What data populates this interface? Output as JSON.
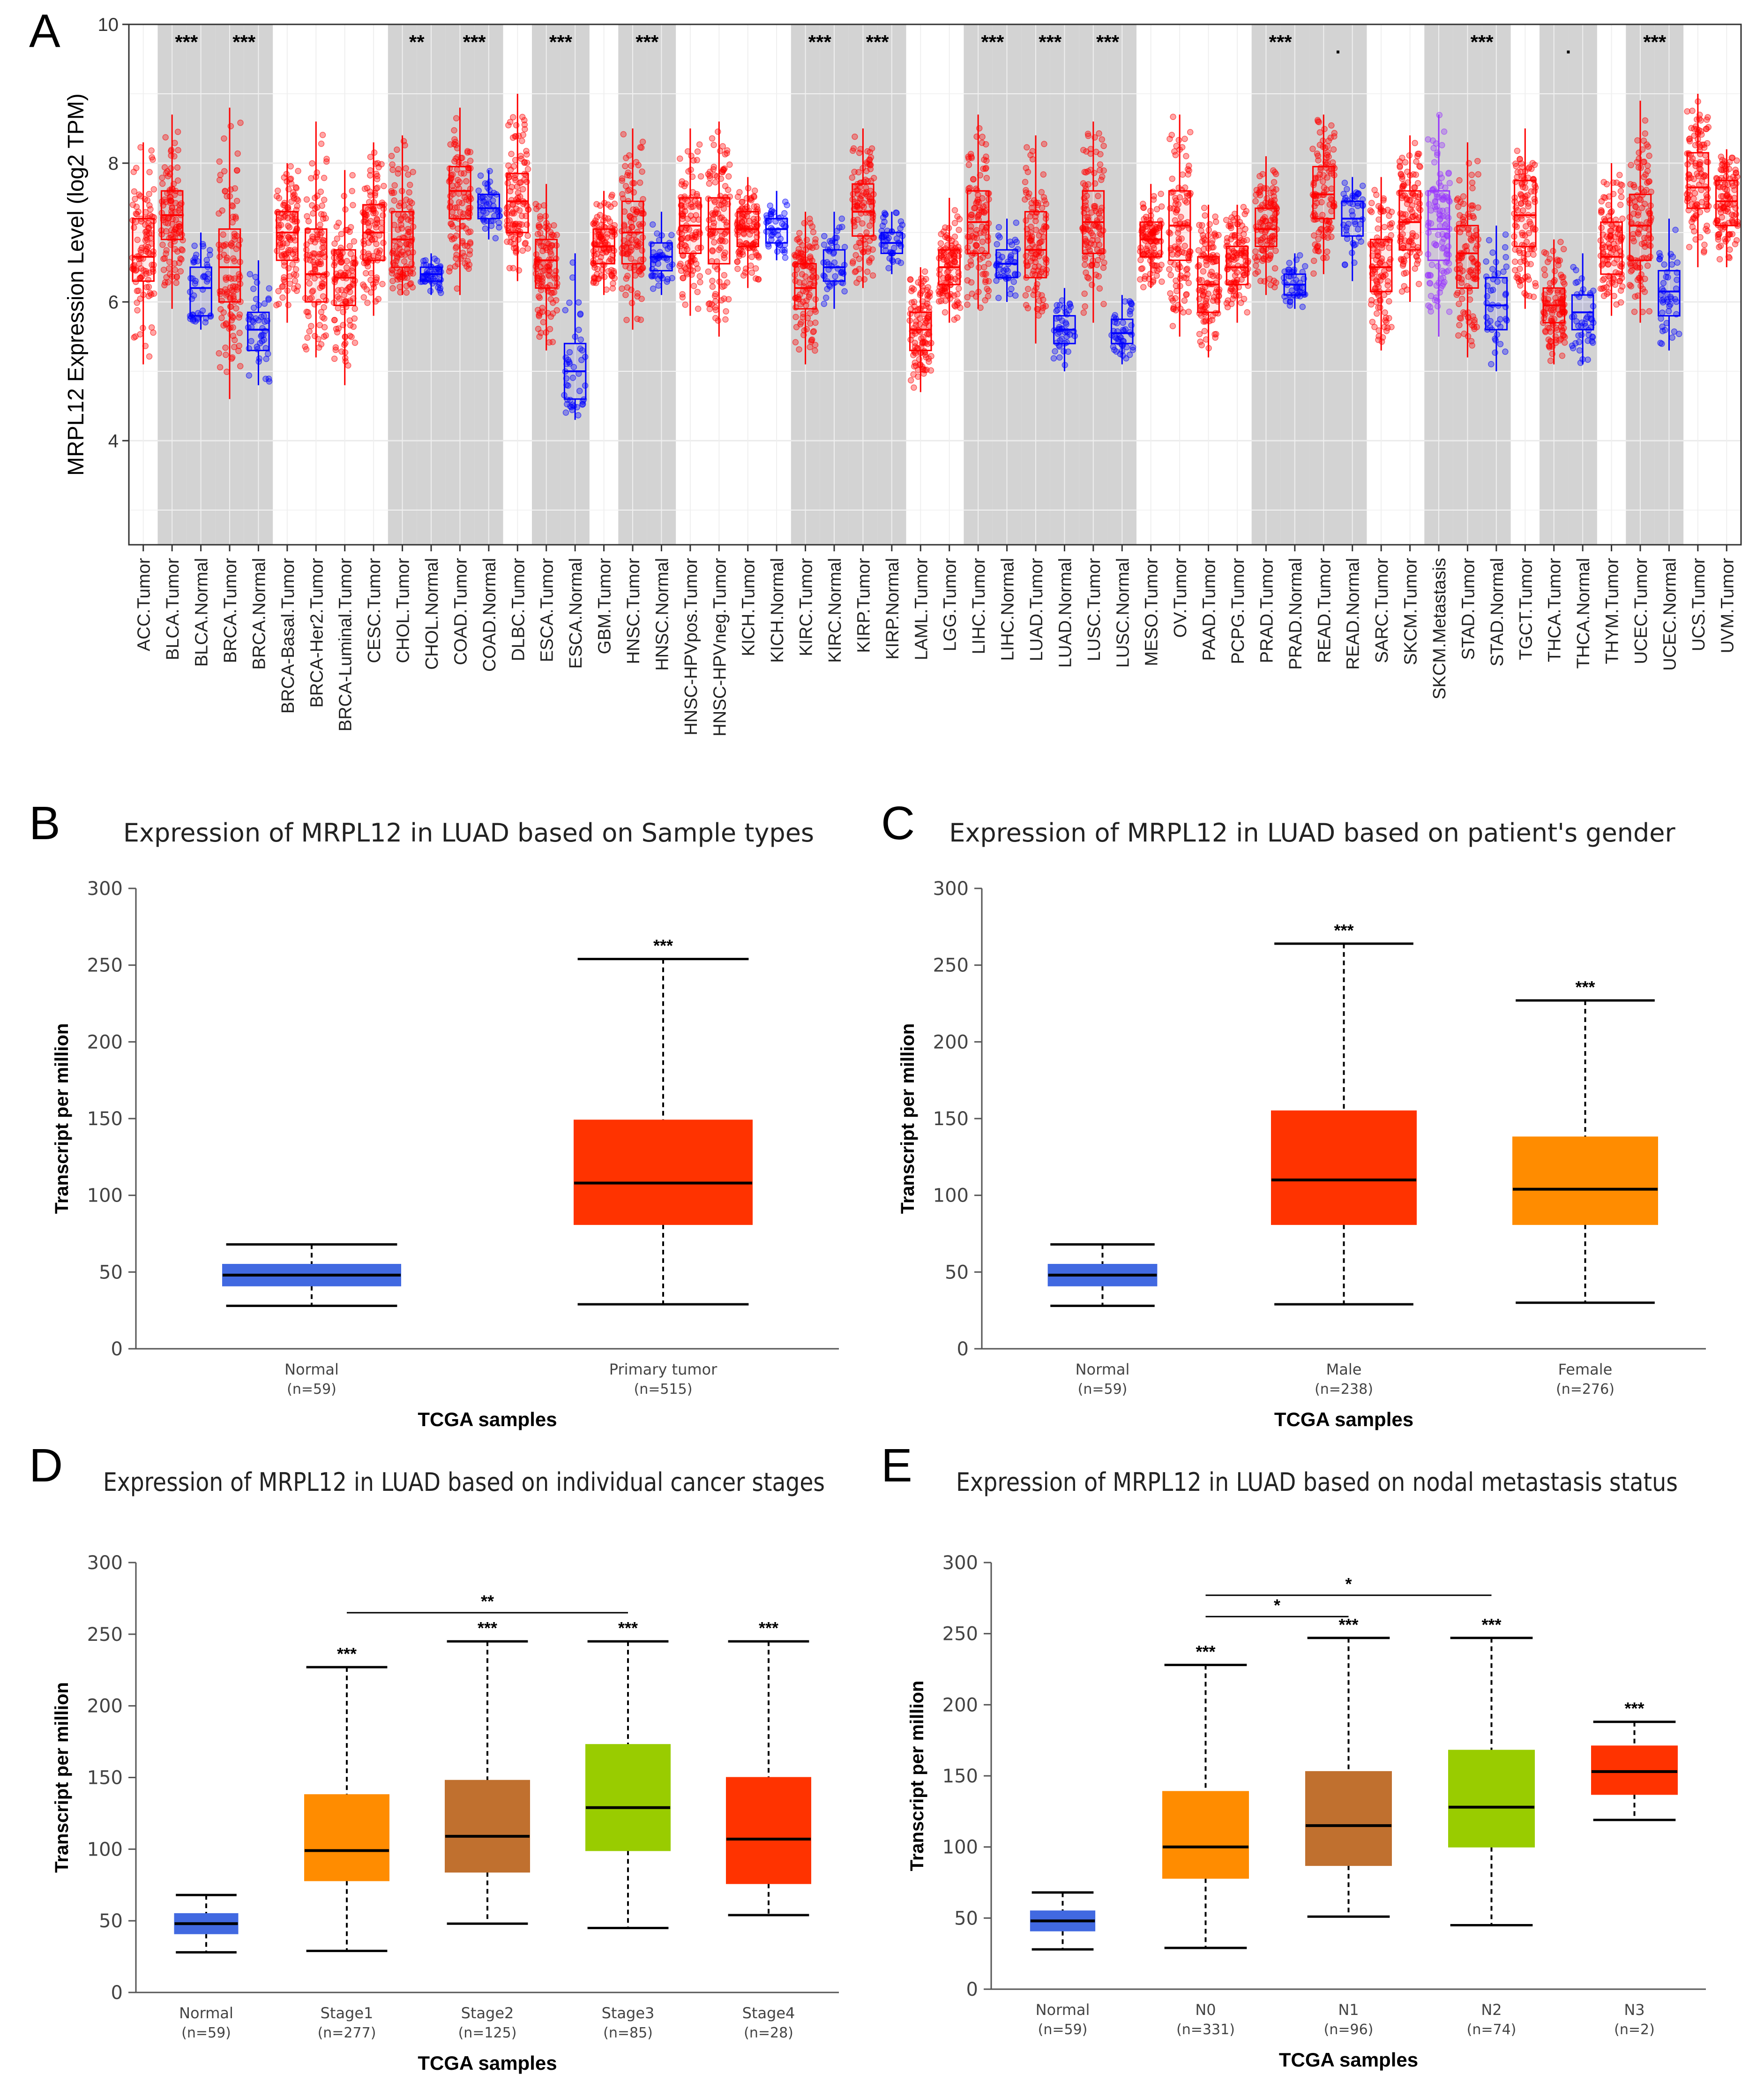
{
  "figure": {
    "panel_labels": [
      "A",
      "B",
      "C",
      "D",
      "E"
    ]
  },
  "colors": {
    "tumor": "#ff0000",
    "normal": "#0000ff",
    "metastasis": "#9933ff",
    "tumor_shade": "#d3d3d3",
    "normal_blue": "#4169e1",
    "red": "#ff3300",
    "orange": "#ff8c00",
    "brown": "#c0702f",
    "green": "#99cc00"
  },
  "chart_data": [
    {
      "panel": "A",
      "type": "box",
      "title": "",
      "ylabel": "MRPL12 Expression Level (log2 TPM)",
      "ylim": [
        2.5,
        10
      ],
      "yticks": [
        4,
        6,
        8,
        10
      ],
      "grid": true,
      "categories": [
        {
          "label": "ACC.Tumor",
          "kind": "tumor",
          "q1": 6.3,
          "med": 6.65,
          "q3": 7.2,
          "lo": 5.1,
          "hi": 8.3,
          "sig": "",
          "shade": false
        },
        {
          "label": "BLCA.Tumor",
          "kind": "tumor",
          "q1": 6.9,
          "med": 7.25,
          "q3": 7.6,
          "lo": 5.9,
          "hi": 8.7,
          "sig": "***",
          "shade": true
        },
        {
          "label": "BLCA.Normal",
          "kind": "normal",
          "q1": 5.8,
          "med": 6.2,
          "q3": 6.5,
          "lo": 5.6,
          "hi": 7.0,
          "sig": "",
          "shade": true
        },
        {
          "label": "BRCA.Tumor",
          "kind": "tumor",
          "q1": 6.0,
          "med": 6.5,
          "q3": 7.05,
          "lo": 4.6,
          "hi": 8.8,
          "sig": "***",
          "shade": true
        },
        {
          "label": "BRCA.Normal",
          "kind": "normal",
          "q1": 5.3,
          "med": 5.6,
          "q3": 5.85,
          "lo": 4.8,
          "hi": 6.6,
          "sig": "",
          "shade": true
        },
        {
          "label": "BRCA-Basal.Tumor",
          "kind": "tumor",
          "q1": 6.6,
          "med": 7.0,
          "q3": 7.3,
          "lo": 5.7,
          "hi": 8.0,
          "sig": "",
          "shade": false
        },
        {
          "label": "BRCA-Her2.Tumor",
          "kind": "tumor",
          "q1": 6.0,
          "med": 6.4,
          "q3": 7.05,
          "lo": 5.2,
          "hi": 8.6,
          "sig": "",
          "shade": false
        },
        {
          "label": "BRCA-Luminal.Tumor",
          "kind": "tumor",
          "q1": 5.95,
          "med": 6.35,
          "q3": 6.75,
          "lo": 4.8,
          "hi": 7.9,
          "sig": "",
          "shade": false
        },
        {
          "label": "CESC.Tumor",
          "kind": "tumor",
          "q1": 6.6,
          "med": 7.0,
          "q3": 7.4,
          "lo": 5.8,
          "hi": 8.3,
          "sig": "",
          "shade": false
        },
        {
          "label": "CHOL.Tumor",
          "kind": "tumor",
          "q1": 6.5,
          "med": 6.9,
          "q3": 7.3,
          "lo": 6.1,
          "hi": 8.4,
          "sig": "**",
          "shade": true
        },
        {
          "label": "CHOL.Normal",
          "kind": "normal",
          "q1": 6.3,
          "med": 6.4,
          "q3": 6.5,
          "lo": 6.1,
          "hi": 6.7,
          "sig": "",
          "shade": true
        },
        {
          "label": "COAD.Tumor",
          "kind": "tumor",
          "q1": 7.2,
          "med": 7.6,
          "q3": 7.95,
          "lo": 6.1,
          "hi": 8.8,
          "sig": "***",
          "shade": true
        },
        {
          "label": "COAD.Normal",
          "kind": "normal",
          "q1": 7.2,
          "med": 7.35,
          "q3": 7.55,
          "lo": 6.9,
          "hi": 7.9,
          "sig": "",
          "shade": true
        },
        {
          "label": "DLBC.Tumor",
          "kind": "tumor",
          "q1": 7.0,
          "med": 7.45,
          "q3": 7.85,
          "lo": 6.3,
          "hi": 9.0,
          "sig": "",
          "shade": false
        },
        {
          "label": "ESCA.Tumor",
          "kind": "tumor",
          "q1": 6.2,
          "med": 6.6,
          "q3": 6.9,
          "lo": 5.3,
          "hi": 7.7,
          "sig": "***",
          "shade": true
        },
        {
          "label": "ESCA.Normal",
          "kind": "normal",
          "q1": 4.6,
          "med": 5.0,
          "q3": 5.4,
          "lo": 4.3,
          "hi": 6.7,
          "sig": "",
          "shade": true
        },
        {
          "label": "GBM.Tumor",
          "kind": "tumor",
          "q1": 6.55,
          "med": 6.8,
          "q3": 7.05,
          "lo": 6.1,
          "hi": 7.6,
          "sig": "",
          "shade": false
        },
        {
          "label": "HNSC.Tumor",
          "kind": "tumor",
          "q1": 6.55,
          "med": 7.0,
          "q3": 7.45,
          "lo": 5.6,
          "hi": 8.5,
          "sig": "***",
          "shade": true
        },
        {
          "label": "HNSC.Normal",
          "kind": "normal",
          "q1": 6.45,
          "med": 6.65,
          "q3": 6.85,
          "lo": 6.1,
          "hi": 7.3,
          "sig": "",
          "shade": true
        },
        {
          "label": "HNSC-HPVpos.Tumor",
          "kind": "tumor",
          "q1": 6.7,
          "med": 7.1,
          "q3": 7.5,
          "lo": 5.8,
          "hi": 8.5,
          "sig": "",
          "shade": false
        },
        {
          "label": "HNSC-HPVneg.Tumor",
          "kind": "tumor",
          "q1": 6.55,
          "med": 7.05,
          "q3": 7.5,
          "lo": 5.5,
          "hi": 8.6,
          "sig": "",
          "shade": false
        },
        {
          "label": "KICH.Tumor",
          "kind": "tumor",
          "q1": 6.8,
          "med": 7.05,
          "q3": 7.3,
          "lo": 6.2,
          "hi": 7.8,
          "sig": "",
          "shade": false
        },
        {
          "label": "KICH.Normal",
          "kind": "normal",
          "q1": 6.85,
          "med": 7.05,
          "q3": 7.2,
          "lo": 6.6,
          "hi": 7.6,
          "sig": "",
          "shade": false
        },
        {
          "label": "KIRC.Tumor",
          "kind": "tumor",
          "q1": 5.9,
          "med": 6.2,
          "q3": 6.55,
          "lo": 5.1,
          "hi": 7.3,
          "sig": "***",
          "shade": true
        },
        {
          "label": "KIRC.Normal",
          "kind": "normal",
          "q1": 6.3,
          "med": 6.5,
          "q3": 6.75,
          "lo": 5.9,
          "hi": 7.3,
          "sig": "",
          "shade": true
        },
        {
          "label": "KIRP.Tumor",
          "kind": "tumor",
          "q1": 6.95,
          "med": 7.3,
          "q3": 7.7,
          "lo": 6.2,
          "hi": 8.5,
          "sig": "***",
          "shade": true
        },
        {
          "label": "KIRP.Normal",
          "kind": "normal",
          "q1": 6.7,
          "med": 6.85,
          "q3": 7.0,
          "lo": 6.4,
          "hi": 7.3,
          "sig": "",
          "shade": true
        },
        {
          "label": "LAML.Tumor",
          "kind": "tumor",
          "q1": 5.3,
          "med": 5.6,
          "q3": 5.85,
          "lo": 4.7,
          "hi": 6.5,
          "sig": "",
          "shade": false
        },
        {
          "label": "LGG.Tumor",
          "kind": "tumor",
          "q1": 6.25,
          "med": 6.5,
          "q3": 6.75,
          "lo": 5.7,
          "hi": 7.5,
          "sig": "",
          "shade": false
        },
        {
          "label": "LIHC.Tumor",
          "kind": "tumor",
          "q1": 6.7,
          "med": 7.15,
          "q3": 7.6,
          "lo": 5.9,
          "hi": 8.7,
          "sig": "***",
          "shade": true
        },
        {
          "label": "LIHC.Normal",
          "kind": "normal",
          "q1": 6.35,
          "med": 6.55,
          "q3": 6.75,
          "lo": 6.0,
          "hi": 7.2,
          "sig": "",
          "shade": true
        },
        {
          "label": "LUAD.Tumor",
          "kind": "tumor",
          "q1": 6.35,
          "med": 6.75,
          "q3": 7.3,
          "lo": 5.4,
          "hi": 8.4,
          "sig": "***",
          "shade": true
        },
        {
          "label": "LUAD.Normal",
          "kind": "normal",
          "q1": 5.4,
          "med": 5.6,
          "q3": 5.8,
          "lo": 5.0,
          "hi": 6.2,
          "sig": "",
          "shade": true
        },
        {
          "label": "LUSC.Tumor",
          "kind": "tumor",
          "q1": 6.7,
          "med": 7.15,
          "q3": 7.6,
          "lo": 5.7,
          "hi": 8.6,
          "sig": "***",
          "shade": true
        },
        {
          "label": "LUSC.Normal",
          "kind": "normal",
          "q1": 5.4,
          "med": 5.55,
          "q3": 5.75,
          "lo": 5.1,
          "hi": 6.1,
          "sig": "",
          "shade": true
        },
        {
          "label": "MESO.Tumor",
          "kind": "tumor",
          "q1": 6.65,
          "med": 6.9,
          "q3": 7.15,
          "lo": 6.2,
          "hi": 7.7,
          "sig": "",
          "shade": false
        },
        {
          "label": "OV.Tumor",
          "kind": "tumor",
          "q1": 6.6,
          "med": 7.1,
          "q3": 7.6,
          "lo": 5.5,
          "hi": 8.7,
          "sig": "",
          "shade": false
        },
        {
          "label": "PAAD.Tumor",
          "kind": "tumor",
          "q1": 5.85,
          "med": 6.25,
          "q3": 6.65,
          "lo": 5.2,
          "hi": 7.4,
          "sig": "",
          "shade": false
        },
        {
          "label": "PCPG.Tumor",
          "kind": "tumor",
          "q1": 6.25,
          "med": 6.5,
          "q3": 6.8,
          "lo": 5.7,
          "hi": 7.4,
          "sig": "",
          "shade": false
        },
        {
          "label": "PRAD.Tumor",
          "kind": "tumor",
          "q1": 6.8,
          "med": 7.05,
          "q3": 7.35,
          "lo": 6.1,
          "hi": 8.1,
          "sig": "***",
          "shade": true
        },
        {
          "label": "PRAD.Normal",
          "kind": "normal",
          "q1": 6.1,
          "med": 6.25,
          "q3": 6.4,
          "lo": 5.9,
          "hi": 6.7,
          "sig": "",
          "shade": true
        },
        {
          "label": "READ.Tumor",
          "kind": "tumor",
          "q1": 7.2,
          "med": 7.55,
          "q3": 7.95,
          "lo": 6.4,
          "hi": 8.7,
          "sig": ".",
          "shade": true
        },
        {
          "label": "READ.Normal",
          "kind": "normal",
          "q1": 6.95,
          "med": 7.2,
          "q3": 7.45,
          "lo": 6.3,
          "hi": 7.8,
          "sig": "",
          "shade": true
        },
        {
          "label": "SARC.Tumor",
          "kind": "tumor",
          "q1": 6.15,
          "med": 6.5,
          "q3": 6.9,
          "lo": 5.3,
          "hi": 7.8,
          "sig": "",
          "shade": false
        },
        {
          "label": "SKCM.Tumor",
          "kind": "tumor",
          "q1": 6.75,
          "med": 7.15,
          "q3": 7.6,
          "lo": 6.0,
          "hi": 8.4,
          "sig": "",
          "shade": false
        },
        {
          "label": "SKCM.Metastasis",
          "kind": "metastasis",
          "q1": 6.6,
          "med": 7.05,
          "q3": 7.6,
          "lo": 5.5,
          "hi": 8.7,
          "sig": "",
          "shade": true
        },
        {
          "label": "STAD.Tumor",
          "kind": "tumor",
          "q1": 6.2,
          "med": 6.7,
          "q3": 7.1,
          "lo": 5.2,
          "hi": 8.3,
          "sig": "***",
          "shade": true
        },
        {
          "label": "STAD.Normal",
          "kind": "normal",
          "q1": 5.6,
          "med": 5.95,
          "q3": 6.35,
          "lo": 5.0,
          "hi": 7.1,
          "sig": "",
          "shade": true
        },
        {
          "label": "TGCT.Tumor",
          "kind": "tumor",
          "q1": 6.8,
          "med": 7.25,
          "q3": 7.75,
          "lo": 5.9,
          "hi": 8.5,
          "sig": "",
          "shade": false
        },
        {
          "label": "THCA.Tumor",
          "kind": "tumor",
          "q1": 5.7,
          "med": 5.95,
          "q3": 6.2,
          "lo": 5.1,
          "hi": 6.9,
          "sig": ".",
          "shade": true
        },
        {
          "label": "THCA.Normal",
          "kind": "normal",
          "q1": 5.6,
          "med": 5.85,
          "q3": 6.1,
          "lo": 5.1,
          "hi": 6.7,
          "sig": "",
          "shade": true
        },
        {
          "label": "THYM.Tumor",
          "kind": "tumor",
          "q1": 6.4,
          "med": 6.65,
          "q3": 7.15,
          "lo": 5.8,
          "hi": 8.0,
          "sig": "",
          "shade": false
        },
        {
          "label": "UCEC.Tumor",
          "kind": "tumor",
          "q1": 6.6,
          "med": 7.1,
          "q3": 7.55,
          "lo": 5.7,
          "hi": 8.9,
          "sig": "***",
          "shade": true
        },
        {
          "label": "UCEC.Normal",
          "kind": "normal",
          "q1": 5.8,
          "med": 6.15,
          "q3": 6.45,
          "lo": 5.3,
          "hi": 7.2,
          "sig": "",
          "shade": true
        },
        {
          "label": "UCS.Tumor",
          "kind": "tumor",
          "q1": 7.35,
          "med": 7.65,
          "q3": 8.15,
          "lo": 6.5,
          "hi": 9.0,
          "sig": "",
          "shade": false
        },
        {
          "label": "UVM.Tumor",
          "kind": "tumor",
          "q1": 7.1,
          "med": 7.45,
          "q3": 7.75,
          "lo": 6.5,
          "hi": 8.2,
          "sig": "",
          "shade": false
        }
      ]
    },
    {
      "panel": "B",
      "type": "box",
      "title": "Expression of MRPL12 in LUAD based on Sample types",
      "xlabel": "TCGA samples",
      "ylabel": "Transcript per million",
      "ylim": [
        0,
        300
      ],
      "yticks": [
        0,
        50,
        100,
        150,
        200,
        250,
        300
      ],
      "boxes": [
        {
          "name": "Normal",
          "n": "(n=59)",
          "color": "#4169e1",
          "lo": 28,
          "q1": 41,
          "med": 48,
          "q3": 55,
          "hi": 68,
          "sig": ""
        },
        {
          "name": "Primary tumor",
          "n": "(n=515)",
          "color": "#ff3300",
          "lo": 29,
          "q1": 81,
          "med": 108,
          "q3": 149,
          "hi": 254,
          "sig": "***"
        }
      ],
      "brackets": []
    },
    {
      "panel": "C",
      "type": "box",
      "title": "Expression of MRPL12 in LUAD based on patient's gender",
      "xlabel": "TCGA samples",
      "ylabel": "Transcript per million",
      "ylim": [
        0,
        300
      ],
      "yticks": [
        0,
        50,
        100,
        150,
        200,
        250,
        300
      ],
      "boxes": [
        {
          "name": "Normal",
          "n": "(n=59)",
          "color": "#4169e1",
          "lo": 28,
          "q1": 41,
          "med": 48,
          "q3": 55,
          "hi": 68,
          "sig": ""
        },
        {
          "name": "Male",
          "n": "(n=238)",
          "color": "#ff3300",
          "lo": 29,
          "q1": 81,
          "med": 110,
          "q3": 155,
          "hi": 264,
          "sig": "***"
        },
        {
          "name": "Female",
          "n": "(n=276)",
          "color": "#ff8c00",
          "lo": 30,
          "q1": 81,
          "med": 104,
          "q3": 138,
          "hi": 227,
          "sig": "***"
        }
      ],
      "brackets": []
    },
    {
      "panel": "D",
      "type": "box",
      "title": "Expression of MRPL12 in LUAD based on individual cancer stages",
      "xlabel": "TCGA samples",
      "ylabel": "Transcript per million",
      "ylim": [
        0,
        300
      ],
      "yticks": [
        0,
        50,
        100,
        150,
        200,
        250,
        300
      ],
      "boxes": [
        {
          "name": "Normal",
          "n": "(n=59)",
          "color": "#4169e1",
          "lo": 28,
          "q1": 41,
          "med": 48,
          "q3": 55,
          "hi": 68,
          "sig": ""
        },
        {
          "name": "Stage1",
          "n": "(n=277)",
          "color": "#ff8c00",
          "lo": 29,
          "q1": 78,
          "med": 99,
          "q3": 138,
          "hi": 227,
          "sig": "***"
        },
        {
          "name": "Stage2",
          "n": "(n=125)",
          "color": "#c0702f",
          "lo": 48,
          "q1": 84,
          "med": 109,
          "q3": 148,
          "hi": 245,
          "sig": "***"
        },
        {
          "name": "Stage3",
          "n": "(n=85)",
          "color": "#99cc00",
          "lo": 45,
          "q1": 99,
          "med": 129,
          "q3": 173,
          "hi": 245,
          "sig": "***"
        },
        {
          "name": "Stage4",
          "n": "(n=28)",
          "color": "#ff3300",
          "lo": 54,
          "q1": 76,
          "med": 107,
          "q3": 150,
          "hi": 245,
          "sig": "***"
        }
      ],
      "brackets": [
        {
          "from": 1,
          "to": 3,
          "y": 265,
          "sig": "**"
        }
      ]
    },
    {
      "panel": "E",
      "type": "box",
      "title": "Expression of MRPL12 in LUAD based on nodal metastasis status",
      "xlabel": "TCGA samples",
      "ylabel": "Transcript per million",
      "ylim": [
        0,
        300
      ],
      "yticks": [
        0,
        50,
        100,
        150,
        200,
        250,
        300
      ],
      "boxes": [
        {
          "name": "Normal",
          "n": "(n=59)",
          "color": "#4169e1",
          "lo": 28,
          "q1": 41,
          "med": 48,
          "q3": 55,
          "hi": 68,
          "sig": ""
        },
        {
          "name": "N0",
          "n": "(n=331)",
          "color": "#ff8c00",
          "lo": 29,
          "q1": 78,
          "med": 100,
          "q3": 139,
          "hi": 228,
          "sig": "***"
        },
        {
          "name": "N1",
          "n": "(n=96)",
          "color": "#c0702f",
          "lo": 51,
          "q1": 87,
          "med": 115,
          "q3": 153,
          "hi": 247,
          "sig": "***"
        },
        {
          "name": "N2",
          "n": "(n=74)",
          "color": "#99cc00",
          "lo": 45,
          "q1": 100,
          "med": 128,
          "q3": 168,
          "hi": 247,
          "sig": "***"
        },
        {
          "name": "N3",
          "n": "(n=2)",
          "color": "#ff3300",
          "lo": 119,
          "q1": 137,
          "med": 153,
          "q3": 171,
          "hi": 188,
          "sig": "***"
        }
      ],
      "brackets": [
        {
          "from": 1,
          "to": 3,
          "y": 277,
          "sig": "*"
        },
        {
          "from": 1,
          "to": 2,
          "y": 262,
          "sig": "*"
        }
      ]
    }
  ]
}
